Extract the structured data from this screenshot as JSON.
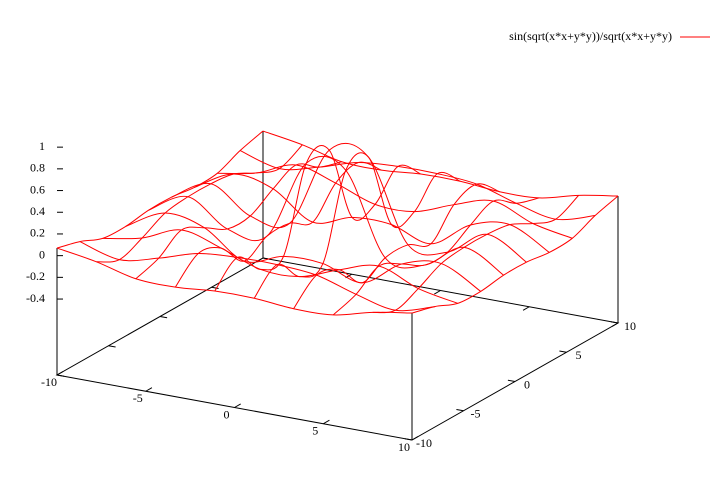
{
  "chart_data": {
    "type": "surface",
    "series": [
      {
        "name": "sin(sqrt(x*x+y*y))/sqrt(x*x+y*y)",
        "color": "#ff0000"
      }
    ],
    "x": [
      -10,
      -7.78,
      -5.56,
      -3.33,
      -1.11,
      1.11,
      3.33,
      5.56,
      7.78,
      10
    ],
    "y": [
      -10,
      -7.78,
      -5.56,
      -3.33,
      -1.11,
      1.11,
      3.33,
      5.56,
      7.78,
      10
    ],
    "z": [
      [
        0.07,
        0.01,
        -0.08,
        -0.09,
        -0.06,
        -0.06,
        -0.09,
        -0.08,
        0.01,
        0.07
      ],
      [
        0.01,
        -0.09,
        -0.01,
        0.1,
        0.13,
        0.13,
        0.1,
        -0.01,
        -0.09,
        0.01
      ],
      [
        -0.08,
        -0.01,
        0.13,
        0.03,
        -0.1,
        -0.1,
        0.03,
        0.13,
        -0.01,
        -0.08
      ],
      [
        -0.09,
        0.1,
        0.03,
        -0.21,
        -0.1,
        -0.1,
        -0.21,
        0.03,
        0.1,
        -0.09
      ],
      [
        -0.06,
        0.13,
        -0.1,
        -0.1,
        0.64,
        0.64,
        -0.1,
        -0.1,
        0.13,
        -0.06
      ],
      [
        -0.06,
        0.13,
        -0.1,
        -0.1,
        0.64,
        0.64,
        -0.1,
        -0.1,
        0.13,
        -0.06
      ],
      [
        -0.09,
        0.1,
        0.03,
        -0.21,
        -0.1,
        -0.1,
        -0.21,
        0.03,
        0.1,
        -0.09
      ],
      [
        -0.08,
        -0.01,
        0.13,
        0.03,
        -0.1,
        -0.1,
        0.03,
        0.13,
        -0.01,
        -0.08
      ],
      [
        0.01,
        -0.09,
        -0.01,
        0.1,
        0.13,
        0.13,
        0.1,
        -0.01,
        -0.09,
        0.01
      ],
      [
        0.07,
        0.01,
        -0.08,
        -0.09,
        -0.06,
        -0.06,
        -0.09,
        -0.08,
        0.01,
        0.07
      ]
    ],
    "xlim": [
      -10,
      10
    ],
    "ylim": [
      -10,
      10
    ],
    "zlim": [
      -0.4,
      1
    ],
    "xticks": [
      -10,
      -5,
      0,
      5,
      10
    ],
    "yticks": [
      -10,
      -5,
      0,
      5,
      10
    ],
    "zticks": [
      1,
      0.8,
      0.6,
      0.4,
      0.2,
      0,
      -0.2,
      -0.4
    ],
    "ticslevel": 0.5
  }
}
